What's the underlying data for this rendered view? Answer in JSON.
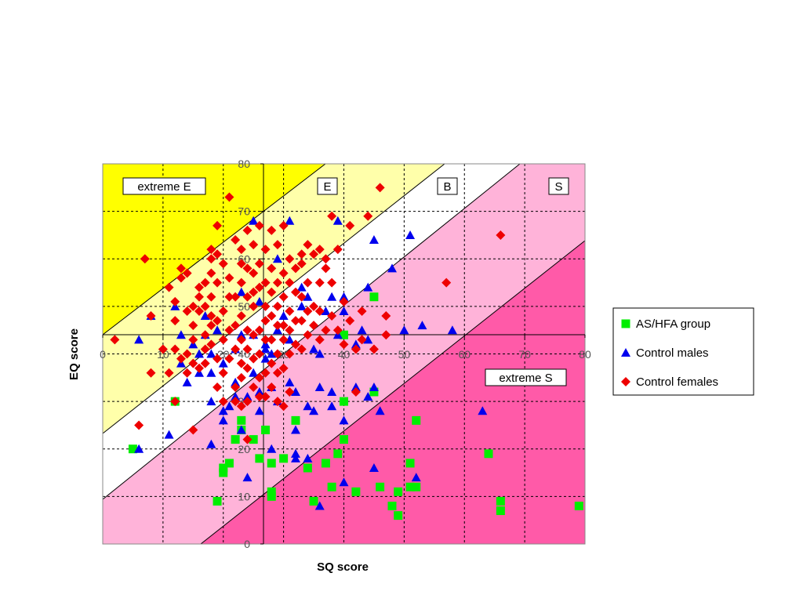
{
  "chart_data": {
    "type": "scatter",
    "xlabel": "SQ score",
    "ylabel": "EQ score",
    "xlim": [
      0,
      80
    ],
    "ylim": [
      0,
      80
    ],
    "grid": true,
    "x_ticks": [
      "0",
      "10",
      "20",
      "30",
      "40",
      "50",
      "60",
      "70",
      "80"
    ],
    "y_ticks": [
      "0",
      "10",
      "20",
      "30",
      "40",
      "50",
      "60",
      "70",
      "80"
    ],
    "legend_position": "right",
    "regions": [
      {
        "label": "extreme E",
        "color": "#ffff00"
      },
      {
        "label": "E",
        "color": "#ffffaa"
      },
      {
        "label": "B",
        "color": "#ffffff"
      },
      {
        "label": "S",
        "color": "#ffb3d9"
      },
      {
        "label": "extreme S",
        "color": "#ff5aa8"
      }
    ],
    "series": [
      {
        "name": "AS/HFA group",
        "marker": "square",
        "color": "#00ee00",
        "points": [
          [
            5,
            20
          ],
          [
            12,
            30
          ],
          [
            19,
            9
          ],
          [
            20,
            15
          ],
          [
            20,
            16
          ],
          [
            21,
            17
          ],
          [
            22,
            22
          ],
          [
            23,
            24
          ],
          [
            23,
            26
          ],
          [
            25,
            22
          ],
          [
            26,
            18
          ],
          [
            27,
            24
          ],
          [
            28,
            10
          ],
          [
            28,
            11
          ],
          [
            28,
            17
          ],
          [
            30,
            18
          ],
          [
            32,
            26
          ],
          [
            34,
            16
          ],
          [
            35,
            9
          ],
          [
            37,
            17
          ],
          [
            38,
            12
          ],
          [
            39,
            19
          ],
          [
            40,
            22
          ],
          [
            40,
            30
          ],
          [
            40,
            44
          ],
          [
            42,
            11
          ],
          [
            45,
            32
          ],
          [
            45,
            52
          ],
          [
            46,
            12
          ],
          [
            48,
            8
          ],
          [
            49,
            6
          ],
          [
            49,
            11
          ],
          [
            51,
            12
          ],
          [
            51,
            17
          ],
          [
            52,
            26
          ],
          [
            52,
            12
          ],
          [
            64,
            19
          ],
          [
            66,
            7
          ],
          [
            66,
            9
          ],
          [
            79,
            8
          ]
        ]
      },
      {
        "name": "Control males",
        "marker": "triangle",
        "color": "#0000ee",
        "points": [
          [
            6,
            20
          ],
          [
            6,
            43
          ],
          [
            8,
            48
          ],
          [
            11,
            23
          ],
          [
            12,
            50
          ],
          [
            13,
            44
          ],
          [
            13,
            38
          ],
          [
            14,
            34
          ],
          [
            15,
            42
          ],
          [
            16,
            36
          ],
          [
            16,
            40
          ],
          [
            17,
            44
          ],
          [
            17,
            48
          ],
          [
            18,
            21
          ],
          [
            18,
            30
          ],
          [
            18,
            36
          ],
          [
            18,
            40
          ],
          [
            19,
            45
          ],
          [
            20,
            28
          ],
          [
            20,
            26
          ],
          [
            20,
            38
          ],
          [
            21,
            29
          ],
          [
            22,
            34
          ],
          [
            22,
            31
          ],
          [
            22,
            41
          ],
          [
            23,
            24
          ],
          [
            23,
            44
          ],
          [
            23,
            53
          ],
          [
            24,
            14
          ],
          [
            24,
            31
          ],
          [
            25,
            36
          ],
          [
            25,
            44
          ],
          [
            25,
            68
          ],
          [
            26,
            51
          ],
          [
            26,
            28
          ],
          [
            26,
            32
          ],
          [
            27,
            39
          ],
          [
            27,
            41
          ],
          [
            27,
            42
          ],
          [
            28,
            33
          ],
          [
            28,
            20
          ],
          [
            28,
            40
          ],
          [
            29,
            60
          ],
          [
            29,
            30
          ],
          [
            29,
            45
          ],
          [
            30,
            48
          ],
          [
            31,
            43
          ],
          [
            31,
            34
          ],
          [
            31,
            68
          ],
          [
            32,
            32
          ],
          [
            32,
            18
          ],
          [
            32,
            19
          ],
          [
            32,
            24
          ],
          [
            33,
            54
          ],
          [
            33,
            50
          ],
          [
            34,
            52
          ],
          [
            34,
            18
          ],
          [
            34,
            29
          ],
          [
            35,
            41
          ],
          [
            35,
            28
          ],
          [
            36,
            40
          ],
          [
            36,
            33
          ],
          [
            36,
            8
          ],
          [
            37,
            49
          ],
          [
            38,
            29
          ],
          [
            38,
            32
          ],
          [
            38,
            52
          ],
          [
            39,
            68
          ],
          [
            39,
            44
          ],
          [
            40,
            13
          ],
          [
            40,
            26
          ],
          [
            40,
            49
          ],
          [
            40,
            52
          ],
          [
            42,
            33
          ],
          [
            42,
            42
          ],
          [
            43,
            45
          ],
          [
            44,
            54
          ],
          [
            44,
            31
          ],
          [
            44,
            43
          ],
          [
            45,
            33
          ],
          [
            45,
            16
          ],
          [
            45,
            64
          ],
          [
            46,
            28
          ],
          [
            48,
            58
          ],
          [
            50,
            45
          ],
          [
            51,
            65
          ],
          [
            52,
            14
          ],
          [
            53,
            46
          ],
          [
            58,
            45
          ],
          [
            63,
            28
          ]
        ]
      },
      {
        "name": "Control females",
        "marker": "diamond",
        "color": "#ee0000",
        "points": [
          [
            2,
            43
          ],
          [
            6,
            25
          ],
          [
            7,
            60
          ],
          [
            8,
            36
          ],
          [
            8,
            48
          ],
          [
            10,
            41
          ],
          [
            11,
            54
          ],
          [
            11,
            36
          ],
          [
            12,
            51
          ],
          [
            12,
            47
          ],
          [
            12,
            41
          ],
          [
            12,
            30
          ],
          [
            13,
            56
          ],
          [
            13,
            58
          ],
          [
            13,
            39
          ],
          [
            14,
            57
          ],
          [
            14,
            49
          ],
          [
            14,
            40
          ],
          [
            14,
            36
          ],
          [
            15,
            50
          ],
          [
            15,
            43
          ],
          [
            15,
            46
          ],
          [
            15,
            38
          ],
          [
            15,
            24
          ],
          [
            16,
            49
          ],
          [
            16,
            54
          ],
          [
            16,
            52
          ],
          [
            16,
            37
          ],
          [
            17,
            55
          ],
          [
            17,
            50
          ],
          [
            17,
            44
          ],
          [
            17,
            41
          ],
          [
            17,
            38
          ],
          [
            18,
            62
          ],
          [
            18,
            60
          ],
          [
            18,
            57
          ],
          [
            18,
            52
          ],
          [
            18,
            48
          ],
          [
            18,
            46
          ],
          [
            18,
            42
          ],
          [
            19,
            67
          ],
          [
            19,
            61
          ],
          [
            19,
            55
          ],
          [
            19,
            47
          ],
          [
            19,
            39
          ],
          [
            19,
            33
          ],
          [
            20,
            59
          ],
          [
            20,
            49
          ],
          [
            20,
            43
          ],
          [
            20,
            36
          ],
          [
            20,
            30
          ],
          [
            21,
            73
          ],
          [
            21,
            56
          ],
          [
            21,
            52
          ],
          [
            21,
            45
          ],
          [
            21,
            39
          ],
          [
            22,
            64
          ],
          [
            22,
            52
          ],
          [
            22,
            46
          ],
          [
            22,
            41
          ],
          [
            22,
            33
          ],
          [
            22,
            30
          ],
          [
            23,
            62
          ],
          [
            23,
            59
          ],
          [
            23,
            55
          ],
          [
            23,
            48
          ],
          [
            23,
            43
          ],
          [
            23,
            38
          ],
          [
            23,
            35
          ],
          [
            23,
            29
          ],
          [
            24,
            66
          ],
          [
            24,
            58
          ],
          [
            24,
            52
          ],
          [
            24,
            45
          ],
          [
            24,
            41
          ],
          [
            24,
            37
          ],
          [
            24,
            30
          ],
          [
            24,
            22
          ],
          [
            25,
            63
          ],
          [
            25,
            57
          ],
          [
            25,
            53
          ],
          [
            25,
            50
          ],
          [
            25,
            44
          ],
          [
            25,
            39
          ],
          [
            25,
            33
          ],
          [
            26,
            67
          ],
          [
            26,
            59
          ],
          [
            26,
            54
          ],
          [
            26,
            45
          ],
          [
            26,
            40
          ],
          [
            26,
            35
          ],
          [
            26,
            31
          ],
          [
            27,
            62
          ],
          [
            27,
            55
          ],
          [
            27,
            50
          ],
          [
            27,
            47
          ],
          [
            27,
            43
          ],
          [
            27,
            36
          ],
          [
            27,
            31
          ],
          [
            28,
            66
          ],
          [
            28,
            58
          ],
          [
            28,
            53
          ],
          [
            28,
            48
          ],
          [
            28,
            43
          ],
          [
            28,
            38
          ],
          [
            28,
            33
          ],
          [
            29,
            63
          ],
          [
            29,
            55
          ],
          [
            29,
            50
          ],
          [
            29,
            46
          ],
          [
            29,
            40
          ],
          [
            29,
            36
          ],
          [
            29,
            30
          ],
          [
            30,
            67
          ],
          [
            30,
            57
          ],
          [
            30,
            52
          ],
          [
            30,
            46
          ],
          [
            30,
            43
          ],
          [
            30,
            37
          ],
          [
            30,
            29
          ],
          [
            31,
            60
          ],
          [
            31,
            55
          ],
          [
            31,
            49
          ],
          [
            31,
            45
          ],
          [
            31,
            40
          ],
          [
            31,
            32
          ],
          [
            32,
            58
          ],
          [
            32,
            53
          ],
          [
            32,
            47
          ],
          [
            32,
            42
          ],
          [
            33,
            61
          ],
          [
            33,
            59
          ],
          [
            33,
            52
          ],
          [
            33,
            47
          ],
          [
            33,
            41
          ],
          [
            34,
            63
          ],
          [
            34,
            55
          ],
          [
            34,
            49
          ],
          [
            34,
            44
          ],
          [
            35,
            61
          ],
          [
            35,
            50
          ],
          [
            35,
            46
          ],
          [
            36,
            62
          ],
          [
            36,
            55
          ],
          [
            36,
            49
          ],
          [
            36,
            43
          ],
          [
            37,
            60
          ],
          [
            37,
            58
          ],
          [
            37,
            45
          ],
          [
            38,
            69
          ],
          [
            38,
            55
          ],
          [
            38,
            48
          ],
          [
            39,
            62
          ],
          [
            39,
            45
          ],
          [
            40,
            51
          ],
          [
            40,
            42
          ],
          [
            41,
            67
          ],
          [
            41,
            47
          ],
          [
            42,
            41
          ],
          [
            42,
            32
          ],
          [
            43,
            43
          ],
          [
            43,
            49
          ],
          [
            44,
            69
          ],
          [
            45,
            41
          ],
          [
            46,
            75
          ],
          [
            47,
            48
          ],
          [
            47,
            44
          ],
          [
            57,
            55
          ],
          [
            66,
            65
          ]
        ]
      }
    ]
  }
}
